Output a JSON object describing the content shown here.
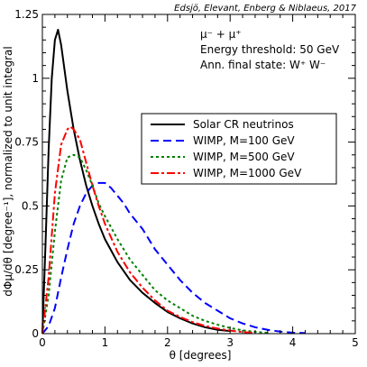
{
  "chart_data": {
    "type": "line",
    "credit": "Edsjö, Elevant, Enberg & Niblaeus, 2017",
    "annotations": [
      "μ⁻ + μ⁺",
      "Energy threshold: 50 GeV",
      "Ann. final state: W⁺ W⁻"
    ],
    "xlabel": "θ [degrees]",
    "ylabel": "dΦμ/dθ [degree⁻¹], normalized to unit integral",
    "xlim": [
      0,
      5
    ],
    "ylim": [
      0,
      1.25
    ],
    "xticks": [
      "0",
      "1",
      "2",
      "3",
      "4",
      "5"
    ],
    "yticks": [
      "0",
      "0.25",
      "0.5",
      "0.75",
      "1",
      "1.25"
    ],
    "legend_position": "center-right",
    "series": [
      {
        "name": "Solar CR neutrinos",
        "color": "#000000",
        "dash": "solid",
        "x": [
          0,
          0.05,
          0.1,
          0.15,
          0.2,
          0.25,
          0.3,
          0.35,
          0.4,
          0.5,
          0.6,
          0.7,
          0.8,
          0.9,
          1.0,
          1.2,
          1.4,
          1.6,
          1.8,
          2.0,
          2.2,
          2.4,
          2.6,
          2.8,
          3.0
        ],
        "y": [
          0,
          0.35,
          0.72,
          1.0,
          1.15,
          1.19,
          1.13,
          1.04,
          0.95,
          0.8,
          0.68,
          0.58,
          0.5,
          0.43,
          0.37,
          0.28,
          0.21,
          0.16,
          0.12,
          0.085,
          0.06,
          0.04,
          0.025,
          0.015,
          0.01
        ]
      },
      {
        "name": "WIMP, M=100 GeV",
        "color": "#0000ff",
        "dash": "dashed",
        "x": [
          0,
          0.1,
          0.2,
          0.3,
          0.4,
          0.5,
          0.6,
          0.7,
          0.8,
          0.9,
          1.0,
          1.1,
          1.2,
          1.3,
          1.4,
          1.6,
          1.8,
          2.0,
          2.2,
          2.4,
          2.6,
          2.8,
          3.0,
          3.2,
          3.4,
          3.6,
          3.8,
          4.0,
          4.2
        ],
        "y": [
          0,
          0.03,
          0.1,
          0.22,
          0.33,
          0.43,
          0.5,
          0.55,
          0.58,
          0.59,
          0.59,
          0.57,
          0.54,
          0.51,
          0.47,
          0.41,
          0.33,
          0.27,
          0.21,
          0.16,
          0.12,
          0.09,
          0.06,
          0.04,
          0.025,
          0.015,
          0.008,
          0.004,
          0.002
        ]
      },
      {
        "name": "WIMP, M=500 GeV",
        "color": "#008000",
        "dash": "dotted",
        "x": [
          0,
          0.1,
          0.2,
          0.3,
          0.4,
          0.5,
          0.6,
          0.7,
          0.8,
          0.9,
          1.0,
          1.2,
          1.4,
          1.6,
          1.8,
          2.0,
          2.2,
          2.4,
          2.6,
          2.8,
          3.0,
          3.2,
          3.4,
          3.6
        ],
        "y": [
          0,
          0.15,
          0.4,
          0.6,
          0.69,
          0.7,
          0.69,
          0.64,
          0.58,
          0.51,
          0.46,
          0.37,
          0.29,
          0.23,
          0.17,
          0.13,
          0.1,
          0.07,
          0.05,
          0.035,
          0.022,
          0.013,
          0.007,
          0.003
        ]
      },
      {
        "name": "WIMP, M=1000 GeV",
        "color": "#ff0000",
        "dash": "dashdot",
        "x": [
          0,
          0.1,
          0.2,
          0.3,
          0.4,
          0.45,
          0.5,
          0.6,
          0.7,
          0.8,
          0.9,
          1.0,
          1.2,
          1.4,
          1.6,
          1.8,
          2.0,
          2.2,
          2.4,
          2.6,
          2.8,
          3.0,
          3.2,
          3.4
        ],
        "y": [
          0,
          0.22,
          0.55,
          0.74,
          0.8,
          0.81,
          0.8,
          0.76,
          0.67,
          0.58,
          0.5,
          0.43,
          0.32,
          0.24,
          0.18,
          0.13,
          0.09,
          0.065,
          0.045,
          0.03,
          0.02,
          0.012,
          0.006,
          0.003
        ]
      }
    ]
  }
}
